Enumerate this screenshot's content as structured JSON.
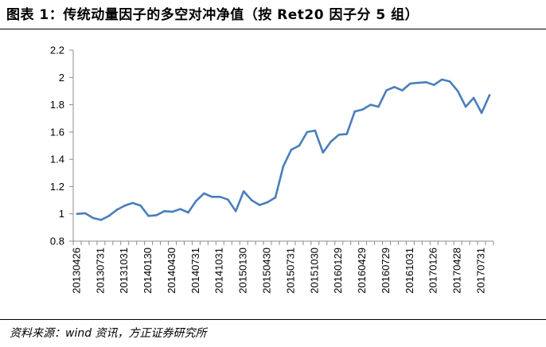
{
  "figure": {
    "title": "图表 1：传统动量因子的多空对冲净值（按 Ret20 因子分 5 组）",
    "source": "资料来源：wind 资讯，方正证券研究所"
  },
  "chart_data": {
    "type": "line",
    "title": "",
    "xlabel": "",
    "ylabel": "",
    "ylim": [
      0.8,
      2.2
    ],
    "yticks": [
      "0.8",
      "1",
      "1.2",
      "1.4",
      "1.6",
      "1.8",
      "2",
      "2.2"
    ],
    "grid": false,
    "legend": "none",
    "x_tick_labels": [
      "20130426",
      "20130731",
      "20131031",
      "20140130",
      "20140430",
      "20140731",
      "20141031",
      "20150130",
      "20150430",
      "20150731",
      "20151030",
      "20160129",
      "20160429",
      "20160729",
      "20161031",
      "20170126",
      "20170428",
      "20170731"
    ],
    "series": [
      {
        "color": "#4a7ebb",
        "x": [
          "20130426",
          "20130531",
          "20130628",
          "20130731",
          "20130830",
          "20130930",
          "20131031",
          "20131129",
          "20131231",
          "20140130",
          "20140228",
          "20140331",
          "20140430",
          "20140530",
          "20140630",
          "20140731",
          "20140829",
          "20140930",
          "20141031",
          "20141128",
          "20141231",
          "20150130",
          "20150227",
          "20150331",
          "20150430",
          "20150529",
          "20150630",
          "20150731",
          "20150831",
          "20150930",
          "20151030",
          "20151130",
          "20151231",
          "20160129",
          "20160229",
          "20160331",
          "20160429",
          "20160531",
          "20160630",
          "20160729",
          "20160831",
          "20160930",
          "20161031",
          "20161130",
          "20161230",
          "20170126",
          "20170228",
          "20170331",
          "20170428",
          "20170531",
          "20170630",
          "20170731",
          "20170831"
        ],
        "values": [
          1.0,
          1.005,
          0.97,
          0.955,
          0.985,
          1.03,
          1.06,
          1.08,
          1.06,
          0.985,
          0.99,
          1.02,
          1.015,
          1.035,
          1.01,
          1.095,
          1.15,
          1.125,
          1.125,
          1.105,
          1.02,
          1.165,
          1.1,
          1.065,
          1.085,
          1.12,
          1.35,
          1.47,
          1.5,
          1.6,
          1.61,
          1.45,
          1.53,
          1.58,
          1.585,
          1.75,
          1.765,
          1.8,
          1.785,
          1.905,
          1.93,
          1.905,
          1.955,
          1.96,
          1.965,
          1.945,
          1.985,
          1.97,
          1.9,
          1.785,
          1.85,
          1.74,
          1.87
        ]
      }
    ]
  }
}
